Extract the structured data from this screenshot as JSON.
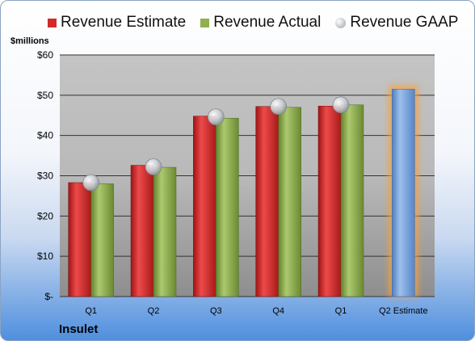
{
  "chart_data": {
    "type": "bar",
    "unit_label": "$millions",
    "company": "Insulet",
    "categories": [
      "Q1",
      "Q2",
      "Q3",
      "Q4",
      "Q1",
      "Q2 Estimate"
    ],
    "series": [
      {
        "name": "Revenue Estimate",
        "values": [
          28.3,
          32.6,
          44.8,
          47.2,
          47.3,
          null
        ]
      },
      {
        "name": "Revenue Actual",
        "values": [
          28.0,
          32.1,
          44.3,
          47.0,
          47.6,
          null
        ]
      },
      {
        "name": "Revenue GAAP",
        "values": [
          28.3,
          32.2,
          44.6,
          47.2,
          47.6,
          null
        ]
      }
    ],
    "projected_estimate": {
      "category": "Q2 Estimate",
      "value": 51.5
    },
    "ylim": [
      0,
      60
    ],
    "yticks": [
      0,
      10,
      20,
      30,
      40,
      50,
      60
    ],
    "ytick_labels": [
      "$-",
      "$10",
      "$20",
      "$30",
      "$40",
      "$50",
      "$60"
    ],
    "grid": true,
    "legend_position": "top",
    "colors": {
      "estimate": "#d22a2a",
      "actual": "#8fb04d",
      "gaap": "#b4b9c0",
      "projected": "#6f9fd8",
      "projected_glow": "#f5a040"
    }
  }
}
